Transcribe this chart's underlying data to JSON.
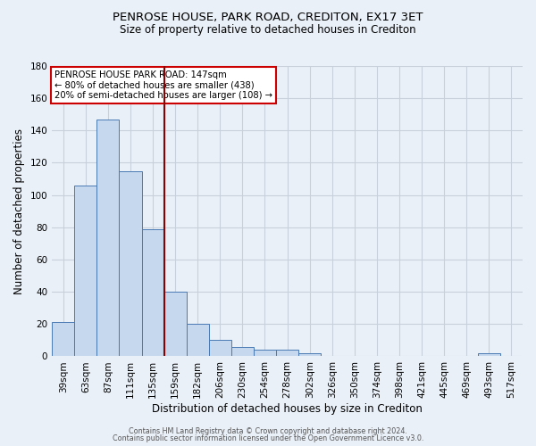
{
  "title": "PENROSE HOUSE, PARK ROAD, CREDITON, EX17 3ET",
  "subtitle": "Size of property relative to detached houses in Crediton",
  "xlabel": "Distribution of detached houses by size in Crediton",
  "ylabel": "Number of detached properties",
  "footnote1": "Contains HM Land Registry data © Crown copyright and database right 2024.",
  "footnote2": "Contains public sector information licensed under the Open Government Licence v3.0.",
  "bin_labels": [
    "39sqm",
    "63sqm",
    "87sqm",
    "111sqm",
    "135sqm",
    "159sqm",
    "182sqm",
    "206sqm",
    "230sqm",
    "254sqm",
    "278sqm",
    "302sqm",
    "326sqm",
    "350sqm",
    "374sqm",
    "398sqm",
    "421sqm",
    "445sqm",
    "469sqm",
    "493sqm",
    "517sqm"
  ],
  "bar_heights": [
    21,
    106,
    147,
    115,
    79,
    40,
    20,
    10,
    6,
    4,
    4,
    2,
    0,
    0,
    0,
    0,
    0,
    0,
    0,
    2,
    0
  ],
  "bar_color": "#c5d8ed",
  "bar_edge_color": "#4a7ab5",
  "grid_color": "#c8d0dc",
  "background_color": "#eaf0f8",
  "vline_color": "#8b0000",
  "vline_position": 4.5,
  "annotation_text_line1": "PENROSE HOUSE PARK ROAD: 147sqm",
  "annotation_text_line2": "← 80% of detached houses are smaller (438)",
  "annotation_text_line3": "20% of semi-detached houses are larger (108) →",
  "annotation_box_color": "#ffffff",
  "annotation_box_edge_color": "#cc0000",
  "ylim": [
    0,
    180
  ],
  "yticks": [
    0,
    20,
    40,
    60,
    80,
    100,
    120,
    140,
    160,
    180
  ],
  "title_fontsize": 9.5,
  "subtitle_fontsize": 8.5,
  "tick_fontsize": 7.5,
  "ylabel_fontsize": 8.5,
  "xlabel_fontsize": 8.5
}
